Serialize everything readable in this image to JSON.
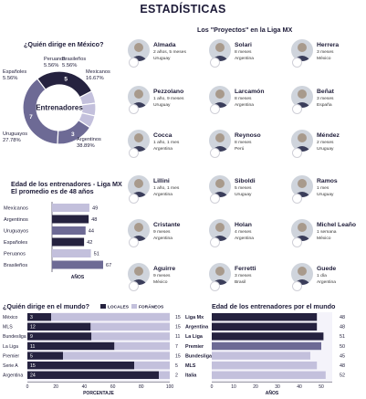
{
  "page": {
    "title": "ESTADÍSTICAS"
  },
  "colors": {
    "dark": "#25223f",
    "mid": "#6d6a95",
    "light": "#c3c0dc",
    "border": "#1d1b38"
  },
  "who_leads_mexico": {
    "title": "¿Quién dirige en México?",
    "center_label": "Entrenadores",
    "chart_data": {
      "type": "pie",
      "categories": [
        "Argentinos",
        "Uruguayos",
        "Españoles",
        "Peruanos",
        "Brasileños",
        "Mexicanos"
      ],
      "values": [
        7,
        5,
        1,
        1,
        1,
        3
      ],
      "percent_labels": [
        "38.89%",
        "27.78%",
        "5.56%",
        "5.56%",
        "5.56%",
        "16.67%"
      ],
      "count_labels": [
        "7",
        "5",
        "1",
        "1",
        "1",
        "3"
      ]
    }
  },
  "age_by_nationality": {
    "title_line1": "Edad de los entrenadores - Liga MX",
    "title_line2": "El promedio es de 48 años",
    "chart_data": {
      "type": "bar",
      "categories": [
        "Mexicanos",
        "Argentinos",
        "Uruguayos",
        "Españoles",
        "Peruanos",
        "Brasileños"
      ],
      "values": [
        49,
        48,
        44,
        42,
        51,
        67
      ],
      "xlabel": "AÑOS"
    }
  },
  "projects": {
    "title": "Los \"Proyectos\" en la Liga MX",
    "coaches": [
      {
        "name": "Almada",
        "line1": "2 años, 5 meses",
        "line2": "Uruguay"
      },
      {
        "name": "Solari",
        "line1": "8 meses",
        "line2": "Argentina"
      },
      {
        "name": "Herrera",
        "line1": "3 meses",
        "line2": "México"
      },
      {
        "name": "Pezzolano",
        "line1": "1 año, 9 meses",
        "line2": "Uruguay"
      },
      {
        "name": "Larcamón",
        "line1": "8 meses",
        "line2": "Argentina"
      },
      {
        "name": "Beñat",
        "line1": "3 meses",
        "line2": "España"
      },
      {
        "name": "Cocca",
        "line1": "1 año, 1 mes",
        "line2": "Argentina"
      },
      {
        "name": "Reynoso",
        "line1": "8 meses",
        "line2": "Perú"
      },
      {
        "name": "Méndez",
        "line1": "2 meses",
        "line2": "Uruguay"
      },
      {
        "name": "Lillini",
        "line1": "1 año, 1 mes",
        "line2": "Argentina"
      },
      {
        "name": "Siboldi",
        "line1": "5 meses",
        "line2": "Uruguay"
      },
      {
        "name": "Ramos",
        "line1": "1 mes",
        "line2": "Uruguay"
      },
      {
        "name": "Cristante",
        "line1": "9 meses",
        "line2": "Argentina"
      },
      {
        "name": "Holan",
        "line1": "4 meses",
        "line2": "Argentina"
      },
      {
        "name": "Michel Leaño",
        "line1": "1 semana",
        "line2": "México"
      },
      {
        "name": "Aguirre",
        "line1": "9 meses",
        "line2": "México"
      },
      {
        "name": "Ferretti",
        "line1": "3 meses",
        "line2": "Brasil"
      },
      {
        "name": "Guede",
        "line1": "1 día",
        "line2": "Argentina"
      }
    ]
  },
  "who_leads_world": {
    "title": "¿Quién dirige en el mundo?",
    "legend": [
      "LOCALES",
      "FORÁNEOS"
    ],
    "chart_data": {
      "type": "bar",
      "categories": [
        "México",
        "MLS",
        "Bundesliga",
        "La Liga",
        "Premier",
        "Serie A",
        "Argentina"
      ],
      "series": [
        {
          "name": "LOCALES",
          "values": [
            3,
            12,
            9,
            11,
            5,
            15,
            24
          ]
        },
        {
          "name": "FORÁNEOS",
          "values": [
            15,
            15,
            11,
            7,
            15,
            5,
            2
          ]
        }
      ],
      "xlabel": "PORCENTAJE",
      "xticks": [
        "0",
        "20",
        "40",
        "60",
        "80",
        "100"
      ],
      "xlim": [
        0,
        100
      ]
    }
  },
  "age_world": {
    "title": "Edad de los entrenadores por el mundo",
    "chart_data": {
      "type": "bar",
      "categories": [
        "Liga Mx",
        "Argentina",
        "La Liga",
        "Premier",
        "Bundesliga",
        "MLS",
        "Italia"
      ],
      "values": [
        48,
        48,
        51,
        50,
        45,
        48,
        52
      ],
      "xlabel": "AÑOS",
      "xticks": [
        "0",
        "10",
        "20",
        "30",
        "40",
        "50"
      ],
      "xlim": [
        0,
        55
      ]
    }
  }
}
